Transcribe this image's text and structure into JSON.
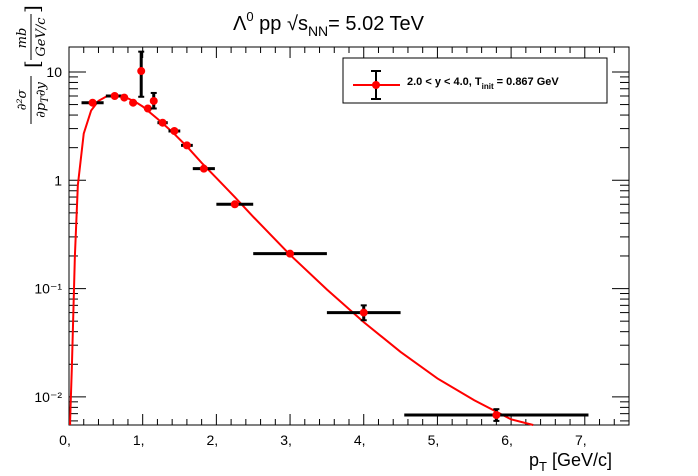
{
  "chart_data": {
    "type": "scatter",
    "title": {
      "lambda": "Λ",
      "zero": "0",
      "system": " pp ",
      "sqrt": "√",
      "s": "s",
      "nn": "NN",
      "energy": "= 5.02 TeV"
    },
    "xlabel": {
      "p": "p",
      "t": "T",
      "unit": " [GeV/c]"
    },
    "ylabel": {
      "lhs": "∂²σ / ∂p_T∂y",
      "unit": "[mb / GeV/c]"
    },
    "x_ticks": [
      "0,",
      "1,",
      "2,",
      "3,",
      "4,",
      "5,",
      "6,",
      "7,"
    ],
    "y_ticks": [
      "10⁻²",
      "10⁻¹",
      "1",
      "10"
    ],
    "y_tick_values": [
      0.01,
      0.1,
      1,
      10
    ],
    "xlim": [
      0,
      7.6
    ],
    "ylim": [
      0.0055,
      17
    ],
    "y_scale": "log",
    "legend_position": "top-right",
    "legend": {
      "base": "2.0 < y < 4.0, T",
      "sub": "init",
      "rest": " = 0.867 GeV"
    },
    "colors": {
      "points": "#ff0000",
      "fit": "#ff0000",
      "errors": "#000000"
    },
    "series": [
      {
        "kind": "points",
        "x": [
          0.32,
          0.62,
          0.75,
          0.87,
          0.98,
          1.07,
          1.15,
          1.27,
          1.43,
          1.6,
          1.83,
          2.25,
          3.0,
          4.0,
          5.8
        ],
        "y": [
          5.2,
          6.0,
          5.8,
          5.2,
          10.2,
          4.6,
          5.4,
          3.4,
          2.85,
          2.1,
          1.28,
          0.6,
          0.21,
          0.06,
          0.0068
        ],
        "xerr": [
          0.15,
          0.12,
          0.05,
          0.05,
          0.02,
          0.05,
          0.03,
          0.07,
          0.08,
          0.08,
          0.15,
          0.25,
          0.5,
          0.5,
          1.25
        ],
        "yerr_lo": [
          0.0,
          0.0,
          0.0,
          0.0,
          4.3,
          0.0,
          0.8,
          0.0,
          0.0,
          0.0,
          0.0,
          0.0,
          0.0,
          0.009,
          0.0008
        ],
        "yerr_hi": [
          0.0,
          0.0,
          0.0,
          0.0,
          5.2,
          0.0,
          1.0,
          0.0,
          0.0,
          0.0,
          0.0,
          0.0,
          0.0,
          0.01,
          0.0009
        ]
      },
      {
        "kind": "fit",
        "x": [
          0.015,
          0.04,
          0.08,
          0.12,
          0.2,
          0.3,
          0.4,
          0.5,
          0.6,
          0.7,
          0.8,
          0.9,
          1.0,
          1.2,
          1.4,
          1.6,
          1.8,
          2.0,
          2.25,
          2.5,
          3.0,
          3.5,
          4.0,
          4.5,
          5.0,
          5.5,
          6.0,
          6.3
        ],
        "y": [
          0.006,
          0.02,
          0.2,
          0.9,
          2.7,
          4.4,
          5.4,
          5.9,
          6.1,
          6.0,
          5.7,
          5.3,
          4.8,
          3.7,
          2.8,
          2.05,
          1.45,
          1.05,
          0.7,
          0.46,
          0.205,
          0.098,
          0.049,
          0.026,
          0.0148,
          0.0093,
          0.0062,
          0.0051
        ]
      }
    ]
  }
}
